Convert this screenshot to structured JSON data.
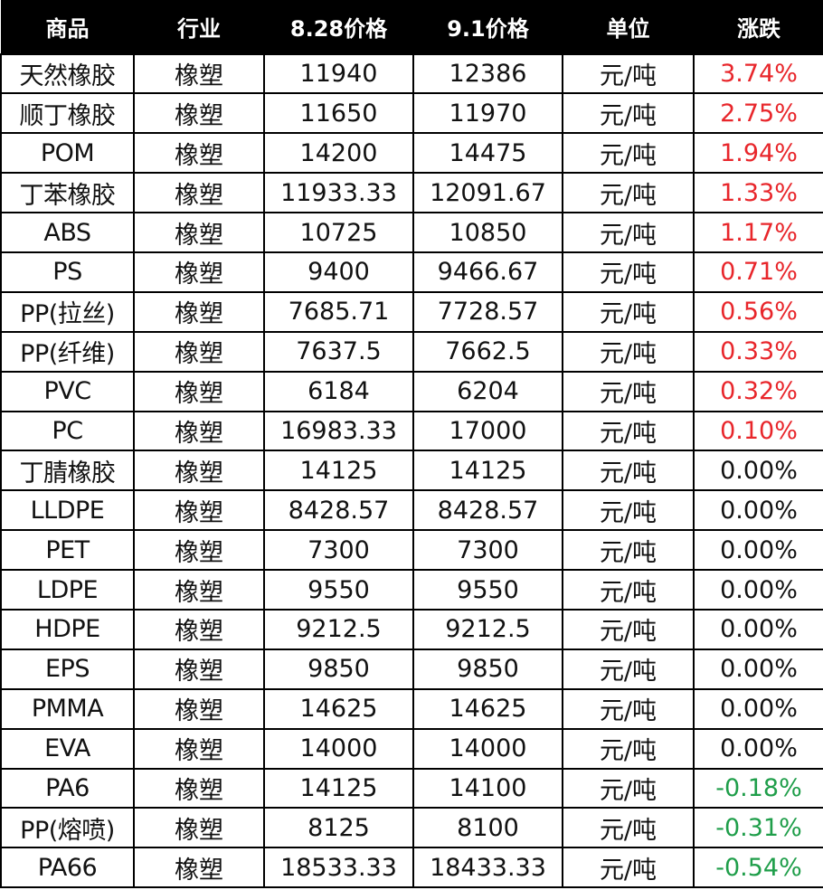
{
  "header": {
    "columns": [
      "商品",
      "行业",
      "8.28价格",
      "9.1价格",
      "单位",
      "涨跌"
    ]
  },
  "colors": {
    "header_bg": "#000000",
    "header_text": "#ffffff",
    "up": "#e8262b",
    "flat": "#111111",
    "down": "#1f9e4a"
  },
  "rows": [
    {
      "name": "天然橡胶",
      "industry": "橡塑",
      "price_828": "11940",
      "price_91": "12386",
      "unit": "元/吨",
      "change": "3.74%",
      "trend": "up"
    },
    {
      "name": "顺丁橡胶",
      "industry": "橡塑",
      "price_828": "11650",
      "price_91": "11970",
      "unit": "元/吨",
      "change": "2.75%",
      "trend": "up"
    },
    {
      "name": "POM",
      "industry": "橡塑",
      "price_828": "14200",
      "price_91": "14475",
      "unit": "元/吨",
      "change": "1.94%",
      "trend": "up"
    },
    {
      "name": "丁苯橡胶",
      "industry": "橡塑",
      "price_828": "11933.33",
      "price_91": "12091.67",
      "unit": "元/吨",
      "change": "1.33%",
      "trend": "up"
    },
    {
      "name": "ABS",
      "industry": "橡塑",
      "price_828": "10725",
      "price_91": "10850",
      "unit": "元/吨",
      "change": "1.17%",
      "trend": "up"
    },
    {
      "name": "PS",
      "industry": "橡塑",
      "price_828": "9400",
      "price_91": "9466.67",
      "unit": "元/吨",
      "change": "0.71%",
      "trend": "up"
    },
    {
      "name": "PP(拉丝)",
      "industry": "橡塑",
      "price_828": "7685.71",
      "price_91": "7728.57",
      "unit": "元/吨",
      "change": "0.56%",
      "trend": "up"
    },
    {
      "name": "PP(纤维)",
      "industry": "橡塑",
      "price_828": "7637.5",
      "price_91": "7662.5",
      "unit": "元/吨",
      "change": "0.33%",
      "trend": "up"
    },
    {
      "name": "PVC",
      "industry": "橡塑",
      "price_828": "6184",
      "price_91": "6204",
      "unit": "元/吨",
      "change": "0.32%",
      "trend": "up"
    },
    {
      "name": "PC",
      "industry": "橡塑",
      "price_828": "16983.33",
      "price_91": "17000",
      "unit": "元/吨",
      "change": "0.10%",
      "trend": "up"
    },
    {
      "name": "丁腈橡胶",
      "industry": "橡塑",
      "price_828": "14125",
      "price_91": "14125",
      "unit": "元/吨",
      "change": "0.00%",
      "trend": "flat"
    },
    {
      "name": "LLDPE",
      "industry": "橡塑",
      "price_828": "8428.57",
      "price_91": "8428.57",
      "unit": "元/吨",
      "change": "0.00%",
      "trend": "flat"
    },
    {
      "name": "PET",
      "industry": "橡塑",
      "price_828": "7300",
      "price_91": "7300",
      "unit": "元/吨",
      "change": "0.00%",
      "trend": "flat"
    },
    {
      "name": "LDPE",
      "industry": "橡塑",
      "price_828": "9550",
      "price_91": "9550",
      "unit": "元/吨",
      "change": "0.00%",
      "trend": "flat"
    },
    {
      "name": "HDPE",
      "industry": "橡塑",
      "price_828": "9212.5",
      "price_91": "9212.5",
      "unit": "元/吨",
      "change": "0.00%",
      "trend": "flat"
    },
    {
      "name": "EPS",
      "industry": "橡塑",
      "price_828": "9850",
      "price_91": "9850",
      "unit": "元/吨",
      "change": "0.00%",
      "trend": "flat"
    },
    {
      "name": "PMMA",
      "industry": "橡塑",
      "price_828": "14625",
      "price_91": "14625",
      "unit": "元/吨",
      "change": "0.00%",
      "trend": "flat"
    },
    {
      "name": "EVA",
      "industry": "橡塑",
      "price_828": "14000",
      "price_91": "14000",
      "unit": "元/吨",
      "change": "0.00%",
      "trend": "flat"
    },
    {
      "name": "PA6",
      "industry": "橡塑",
      "price_828": "14125",
      "price_91": "14100",
      "unit": "元/吨",
      "change": "-0.18%",
      "trend": "down"
    },
    {
      "name": "PP(熔喷)",
      "industry": "橡塑",
      "price_828": "8125",
      "price_91": "8100",
      "unit": "元/吨",
      "change": "-0.31%",
      "trend": "down"
    },
    {
      "name": "PA66",
      "industry": "橡塑",
      "price_828": "18533.33",
      "price_91": "18433.33",
      "unit": "元/吨",
      "change": "-0.54%",
      "trend": "down"
    }
  ]
}
